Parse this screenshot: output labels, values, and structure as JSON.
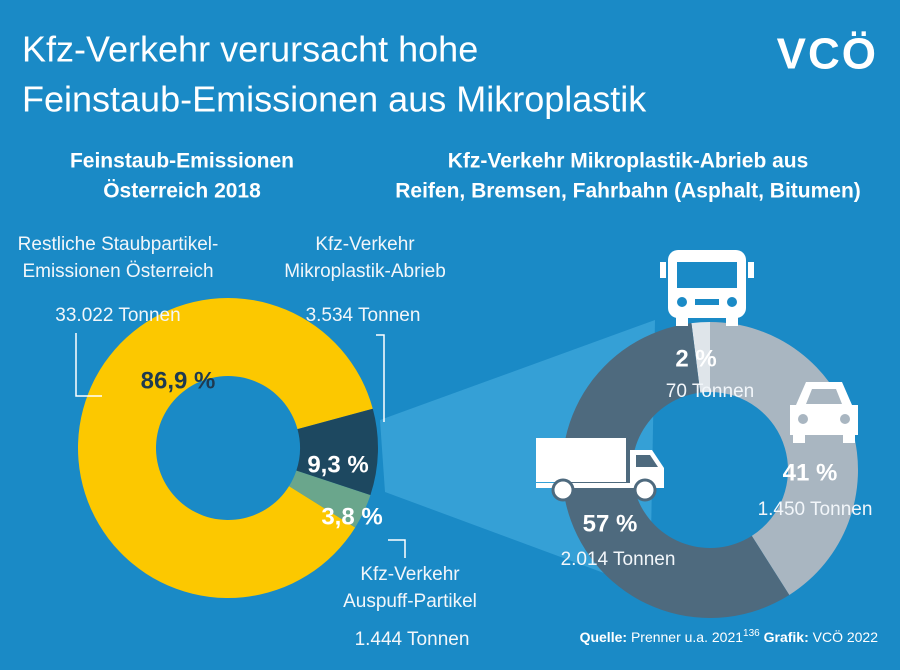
{
  "title": [
    "Kfz-Verkehr verursacht hohe",
    "Feinstaub-Emissionen aus Mikroplastik"
  ],
  "logo": "VCÖ",
  "source": {
    "label": "Quelle:",
    "text": "Prenner u.a. 2021",
    "ref": "136",
    "graphic_label": "Grafik:",
    "graphic": "VCÖ 2022"
  },
  "chart_data": [
    {
      "type": "pie",
      "donut": true,
      "title": [
        "Feinstaub-Emissionen",
        "Österreich 2018"
      ],
      "categories": [
        [
          "Restliche Staubpartikel-",
          "Emissionen Österreich"
        ],
        [
          "Kfz-Verkehr",
          "Mikroplastik-Abrieb"
        ],
        [
          "Kfz-Verkehr",
          "Auspuff-Partikel"
        ]
      ],
      "values": [
        86.9,
        9.3,
        3.8
      ],
      "value_labels": [
        "86,9 %",
        "9,3 %",
        "3,8 %"
      ],
      "amount_labels": [
        "33.022 Tonnen",
        "3.534 Tonnen",
        "1.444 Tonnen"
      ],
      "colors": [
        "#fcc800",
        "#1d4860",
        "#6aa68c"
      ]
    },
    {
      "type": "pie",
      "donut": true,
      "title": [
        "Kfz-Verkehr Mikroplastik-Abrieb aus",
        "Reifen, Bremsen, Fahrbahn (Asphalt, Bitumen)"
      ],
      "values": [
        2,
        41,
        57
      ],
      "value_labels": [
        "2 %",
        "41 %",
        "57 %"
      ],
      "amount_labels": [
        "70 Tonnen",
        "1.450 Tonnen",
        "2.014 Tonnen"
      ],
      "colors": [
        "#dfe5ea",
        "#a9b6c1",
        "#4e6a7e"
      ]
    }
  ]
}
